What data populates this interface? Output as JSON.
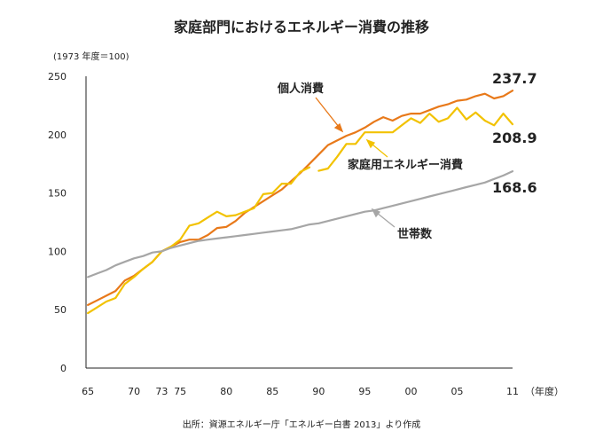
{
  "chart_data": {
    "type": "line",
    "title": "家庭部門におけるエネルギー消費の推移",
    "unit_note": "(1973 年度＝100)",
    "x_unit": "（年度）",
    "source": "出所：資源エネルギー庁「エネルギー白書 2013」より作成",
    "ylim": [
      0,
      250
    ],
    "y_ticks": [
      0,
      50,
      100,
      150,
      200,
      250
    ],
    "x_ticks": [
      {
        "year": 1965,
        "label": "65"
      },
      {
        "year": 1970,
        "label": "70"
      },
      {
        "year": 1973,
        "label": "73"
      },
      {
        "year": 1975,
        "label": "75"
      },
      {
        "year": 1980,
        "label": "80"
      },
      {
        "year": 1985,
        "label": "85"
      },
      {
        "year": 1990,
        "label": "90"
      },
      {
        "year": 1995,
        "label": "95"
      },
      {
        "year": 2000,
        "label": "00"
      },
      {
        "year": 2005,
        "label": "05"
      },
      {
        "year": 2011,
        "label": "11"
      }
    ],
    "grid": false,
    "series": [
      {
        "name": "個人消費",
        "color": "#e8791a",
        "end_label": "237.7",
        "x": [
          1965,
          1966,
          1967,
          1968,
          1969,
          1970,
          1971,
          1972,
          1973,
          1974,
          1975,
          1976,
          1977,
          1978,
          1979,
          1980,
          1981,
          1982,
          1983,
          1984,
          1985,
          1986,
          1987,
          1988,
          1989,
          1990,
          1991,
          1992,
          1993,
          1994,
          1995,
          1996,
          1997,
          1998,
          1999,
          2000,
          2001,
          2002,
          2003,
          2004,
          2005,
          2006,
          2007,
          2008,
          2009,
          2010,
          2011
        ],
        "y": [
          54,
          58,
          62,
          66,
          75,
          79,
          85,
          91,
          100,
          104,
          108,
          110,
          110,
          114,
          120,
          121,
          126,
          133,
          138,
          143,
          148,
          153,
          160,
          167,
          175,
          183,
          191,
          195,
          199,
          202,
          206,
          211,
          215,
          212,
          216,
          218,
          218,
          221,
          224,
          226,
          229,
          230,
          233,
          235,
          231,
          233,
          237.7
        ]
      },
      {
        "name": "家庭用エネルギー消費",
        "color": "#f2c200",
        "end_label": "208.9",
        "segments": [
          {
            "x": [
              1965,
              1966,
              1967,
              1968,
              1969,
              1970,
              1971,
              1972,
              1973,
              1974,
              1975,
              1976,
              1977,
              1978,
              1979,
              1980,
              1981,
              1982,
              1983,
              1984,
              1985,
              1986,
              1987,
              1988,
              1989
            ],
            "y": [
              47,
              52,
              57,
              60,
              72,
              78,
              85,
              91,
              100,
              104,
              110,
              122,
              124,
              129,
              134,
              130,
              131,
              134,
              137,
              149,
              150,
              158,
              158,
              168,
              172
            ]
          },
          {
            "x": [
              1990,
              1991,
              1992,
              1993,
              1994,
              1995,
              1996,
              1997,
              1998,
              1999,
              2000,
              2001,
              2002,
              2003,
              2004,
              2005,
              2006,
              2007,
              2008,
              2009,
              2010,
              2011
            ],
            "y": [
              169,
              171,
              181,
              192,
              192,
              202,
              202,
              202,
              202,
              208,
              214,
              210,
              218,
              211,
              214,
              223,
              213,
              219,
              212,
              208,
              218,
              208.9
            ]
          }
        ]
      },
      {
        "name": "世帯数",
        "color": "#a6a6a6",
        "end_label": "168.6",
        "x": [
          1965,
          1966,
          1967,
          1968,
          1969,
          1970,
          1971,
          1972,
          1973,
          1974,
          1975,
          1976,
          1977,
          1978,
          1979,
          1980,
          1981,
          1982,
          1983,
          1984,
          1985,
          1986,
          1987,
          1988,
          1989,
          1990,
          1991,
          1992,
          1993,
          1994,
          1995,
          1996,
          1997,
          1998,
          1999,
          2000,
          2001,
          2002,
          2003,
          2004,
          2005,
          2006,
          2007,
          2008,
          2009,
          2010,
          2011
        ],
        "y": [
          78,
          81,
          84,
          88,
          91,
          94,
          96,
          99,
          100,
          103,
          105,
          107,
          109,
          110,
          111,
          112,
          113,
          114,
          115,
          116,
          117,
          118,
          119,
          121,
          123,
          124,
          126,
          128,
          130,
          132,
          134,
          135,
          137,
          139,
          141,
          143,
          145,
          147,
          149,
          151,
          153,
          155,
          157,
          159,
          162,
          165,
          168.6
        ]
      }
    ]
  }
}
